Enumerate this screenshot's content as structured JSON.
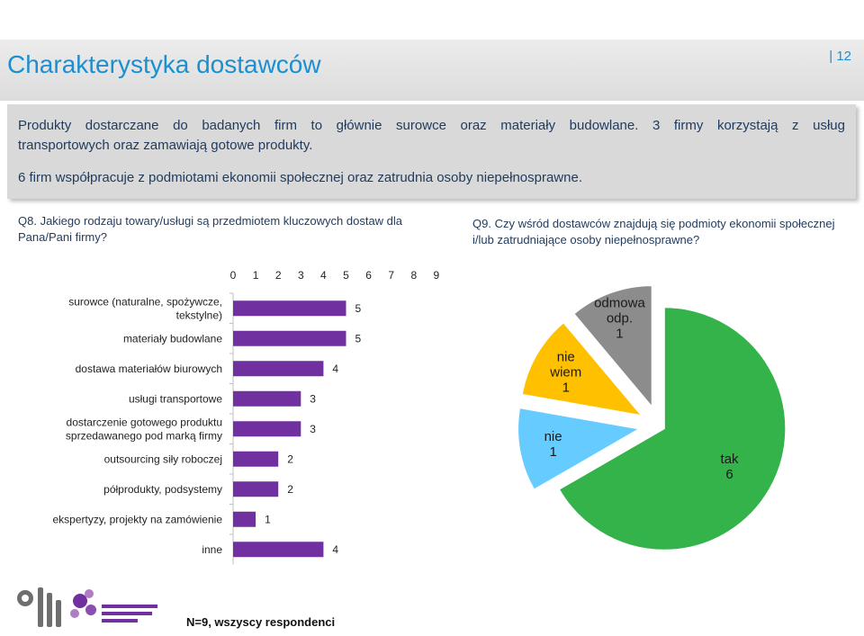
{
  "header": {
    "title": "Charakterystyka dostawców",
    "page_number": "| 12"
  },
  "info": {
    "line1": "Produkty dostarczane do badanych firm to głównie surowce oraz materiały budowlane. 3 firmy korzystają z usług",
    "line2": "transportowych oraz zamawiają gotowe produkty.",
    "line3": "6 firm współpracuje z podmiotami ekonomii społecznej oraz zatrudnia osoby niepełnosprawne."
  },
  "questions": {
    "q8": "Q8. Jakiego rodzaju towary/usługi są przedmiotem kluczowych dostaw dla Pana/Pani firmy?",
    "q9": "Q9. Czy wśród dostawców znajdują się podmioty ekonomii społecznej i/lub zatrudniające osoby niepełnosprawne?"
  },
  "footer": {
    "respondents": "N=9, wszyscy respondenci"
  },
  "colors": {
    "title": "#1b8fd0",
    "bar": "#7030a0",
    "pie_tak": "#33b34a",
    "pie_nie": "#66ccff",
    "pie_nie_wiem": "#ffc000",
    "pie_odmowa": "#8c8c8c"
  },
  "chart_data": [
    {
      "type": "bar",
      "orientation": "horizontal",
      "categories": [
        [
          "surowce (naturalne, spożywcze,",
          "tekstylne)"
        ],
        [
          "materiały budowlane"
        ],
        [
          "dostawa materiałów biurowych"
        ],
        [
          "usługi transportowe"
        ],
        [
          "dostarczenie gotowego produktu",
          "sprzedawanego pod marką firmy"
        ],
        [
          "outsourcing siły roboczej"
        ],
        [
          "półprodukty, podsystemy"
        ],
        [
          "ekspertyzy, projekty na zamówienie"
        ],
        [
          "inne"
        ]
      ],
      "values": [
        5,
        5,
        4,
        3,
        3,
        2,
        2,
        1,
        4
      ],
      "xlim": [
        0,
        9
      ],
      "xticks": [
        "0",
        "1",
        "2",
        "3",
        "4",
        "5",
        "6",
        "7",
        "8",
        "9"
      ],
      "axis_position": "top"
    },
    {
      "type": "pie",
      "slices": [
        {
          "label": "tak",
          "value": 6,
          "color": "#33b34a"
        },
        {
          "label": "nie",
          "value": 1,
          "color": "#66ccff"
        },
        {
          "label": "nie wiem",
          "value": 1,
          "color": "#ffc000"
        },
        {
          "label": "odmowa odp.",
          "value": 1,
          "color": "#8c8c8c"
        }
      ],
      "exploded": true
    }
  ]
}
